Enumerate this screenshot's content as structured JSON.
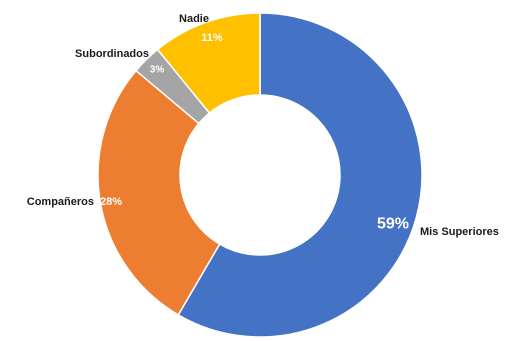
{
  "chart_data": {
    "type": "pie",
    "variant": "donut",
    "title": "",
    "slices": [
      {
        "label": "Mis Superiores",
        "value": 59,
        "display": "59%",
        "color": "#4472C4"
      },
      {
        "label": "Compañeros",
        "value": 28,
        "display": "28%",
        "color": "#ED7D31"
      },
      {
        "label": "Subordinados",
        "value": 3,
        "display": "3%",
        "color": "#A5A5A5"
      },
      {
        "label": "Nadie",
        "value": 11,
        "display": "11%",
        "color": "#FFC000"
      }
    ]
  }
}
